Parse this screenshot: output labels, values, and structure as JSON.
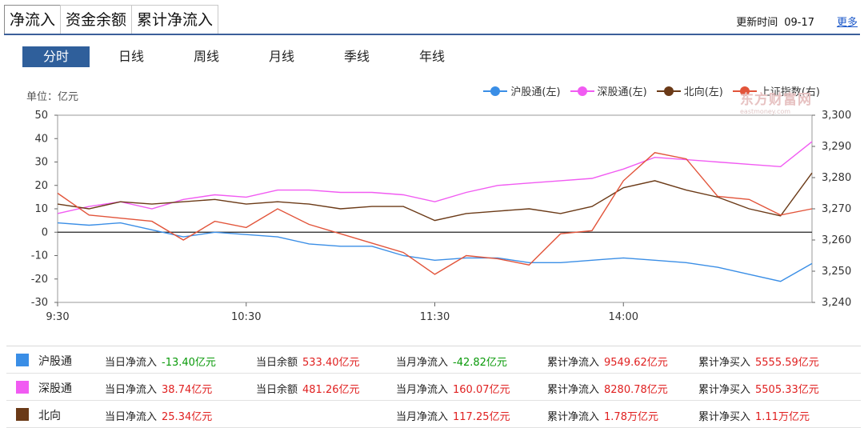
{
  "tabs": [
    "净流入",
    "资金余额",
    "累计净流入"
  ],
  "update": {
    "label": "更新时间",
    "value": "09-17"
  },
  "more": "更多",
  "range_tabs": [
    "分时",
    "日线",
    "周线",
    "月线",
    "季线",
    "年线"
  ],
  "unit": "单位：亿元",
  "legend": [
    {
      "name": "沪股通(左)",
      "color": "#3a8ee6"
    },
    {
      "name": "深股通(左)",
      "color": "#f15bf2"
    },
    {
      "name": "北向(左)",
      "color": "#6b3a17"
    },
    {
      "name": "上证指数(右)",
      "color": "#e2543a"
    }
  ],
  "watermark": {
    "main": "东方财富网",
    "sub": "eastmoney.com"
  },
  "chart_data": {
    "type": "line",
    "x": [
      "9:30",
      "9:40",
      "9:50",
      "10:00",
      "10:10",
      "10:20",
      "10:30",
      "10:40",
      "10:50",
      "11:00",
      "11:10",
      "11:20",
      "11:30",
      "13:10",
      "13:20",
      "13:30",
      "13:40",
      "13:50",
      "14:00",
      "14:10",
      "14:20",
      "14:30",
      "14:40",
      "14:50",
      "15:00"
    ],
    "xticks": [
      "9:30",
      "10:30",
      "11:30",
      "14:00"
    ],
    "yleft": {
      "lim": [
        -30,
        50
      ],
      "ticks": [
        -30,
        -20,
        -10,
        0,
        10,
        20,
        30,
        40,
        50
      ]
    },
    "yright": {
      "lim": [
        3240,
        3300
      ],
      "ticks": [
        "3,240",
        "3,250",
        "3,260",
        "3,270",
        "3,280",
        "3,290",
        "3,300"
      ]
    },
    "series": [
      {
        "name": "沪股通(左)",
        "axis": "left",
        "color": "#3a8ee6",
        "values": [
          4,
          3,
          4,
          1,
          -2,
          0,
          -1,
          -2,
          -5,
          -6,
          -6,
          -10,
          -12,
          -11,
          -11,
          -13,
          -13,
          -12,
          -11,
          -12,
          -13,
          -15,
          -18,
          -21,
          -13.4
        ]
      },
      {
        "name": "深股通(左)",
        "axis": "left",
        "color": "#f15bf2",
        "values": [
          8,
          11,
          13,
          10,
          14,
          16,
          15,
          18,
          18,
          17,
          17,
          16,
          13,
          17,
          20,
          21,
          22,
          23,
          27,
          32,
          31,
          30,
          29,
          28,
          38.7
        ]
      },
      {
        "name": "北向(左)",
        "axis": "left",
        "color": "#6b3a17",
        "values": [
          12,
          10,
          13,
          12,
          13,
          14,
          12,
          13,
          12,
          10,
          11,
          11,
          5,
          8,
          9,
          10,
          8,
          11,
          19,
          22,
          18,
          15,
          10,
          7,
          25.3
        ]
      },
      {
        "name": "上证指数(右)",
        "axis": "right",
        "color": "#e2543a",
        "values": [
          3275,
          3268,
          3267,
          3266,
          3260,
          3266,
          3264,
          3270,
          3265,
          3262,
          3259,
          3256,
          3249,
          3255,
          3254,
          3252,
          3262,
          3263,
          3279,
          3288,
          3286,
          3274,
          3273,
          3268,
          3270
        ]
      }
    ]
  },
  "table": [
    {
      "name": "沪股通",
      "color": "#3a8ee6",
      "cells": [
        {
          "label": "当日净流入",
          "value": "-13.40亿元",
          "sign": "neg"
        },
        {
          "label": "当日余额",
          "value": "533.40亿元",
          "sign": "pos"
        },
        {
          "label": "当月净流入",
          "value": "-42.82亿元",
          "sign": "neg"
        },
        {
          "label": "累计净流入",
          "value": "9549.62亿元",
          "sign": "pos"
        },
        {
          "label": "累计净买入",
          "value": "5555.59亿元",
          "sign": "pos"
        }
      ]
    },
    {
      "name": "深股通",
      "color": "#f15bf2",
      "cells": [
        {
          "label": "当日净流入",
          "value": "38.74亿元",
          "sign": "pos"
        },
        {
          "label": "当日余额",
          "value": "481.26亿元",
          "sign": "pos"
        },
        {
          "label": "当月净流入",
          "value": "160.07亿元",
          "sign": "pos"
        },
        {
          "label": "累计净流入",
          "value": "8280.78亿元",
          "sign": "pos"
        },
        {
          "label": "累计净买入",
          "value": "5505.33亿元",
          "sign": "pos"
        }
      ]
    },
    {
      "name": "北向",
      "color": "#6b3a17",
      "cells": [
        {
          "label": "当日净流入",
          "value": "25.34亿元",
          "sign": "pos"
        },
        {
          "label": "",
          "value": "",
          "sign": "pos"
        },
        {
          "label": "当月净流入",
          "value": "117.25亿元",
          "sign": "pos"
        },
        {
          "label": "累计净流入",
          "value": "1.78万亿元",
          "sign": "pos"
        },
        {
          "label": "累计净买入",
          "value": "1.11万亿元",
          "sign": "pos"
        }
      ]
    }
  ]
}
